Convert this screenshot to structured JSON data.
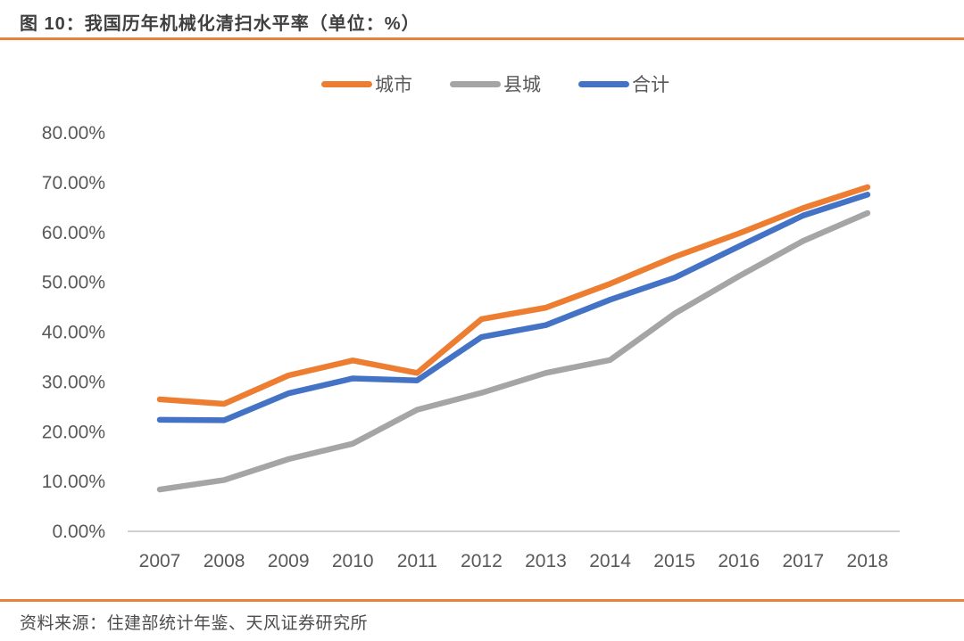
{
  "header": {
    "title": "图 10：我国历年机械化清扫水平率（单位：%）"
  },
  "footer": {
    "source": "资料来源：住建部统计年鉴、天风证券研究所"
  },
  "colors": {
    "divider": "#E9813C",
    "axis_line": "#BFBFBF",
    "axis_text": "#595959",
    "title_text": "#3F3F3F"
  },
  "chart_data": {
    "type": "line",
    "title": "我国历年机械化清扫水平率",
    "unit": "%",
    "categories": [
      "2007",
      "2008",
      "2009",
      "2010",
      "2011",
      "2012",
      "2013",
      "2014",
      "2015",
      "2016",
      "2017",
      "2018"
    ],
    "series": [
      {
        "name": "城市",
        "color": "#ED7D31",
        "values": [
          26.5,
          25.6,
          31.3,
          34.3,
          31.8,
          42.6,
          44.9,
          49.7,
          55.1,
          59.8,
          64.9,
          69.1
        ]
      },
      {
        "name": "县城",
        "color": "#A5A5A5",
        "values": [
          8.4,
          10.3,
          14.5,
          17.6,
          24.4,
          27.8,
          31.8,
          34.4,
          43.7,
          51.2,
          58.3,
          63.9
        ]
      },
      {
        "name": "合计",
        "color": "#4472C4",
        "values": [
          22.4,
          22.3,
          27.7,
          30.7,
          30.3,
          39.0,
          41.4,
          46.5,
          50.9,
          57.2,
          63.4,
          67.6
        ]
      }
    ],
    "ylim": [
      0,
      80
    ],
    "ytick_step": 10,
    "ytick_decimals": 2,
    "ytick_suffix": "%",
    "grid": false,
    "legend_position": "top"
  }
}
